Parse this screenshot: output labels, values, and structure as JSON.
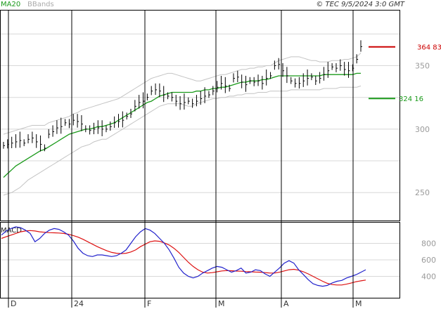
{
  "header": {
    "ma_label": "MA20",
    "bb_label": "BBands",
    "source": "© TEC 9/5/2024 3:0 GMT"
  },
  "markers": {
    "upper": {
      "value": 364.83,
      "label": "364 83",
      "color": "#cc0000"
    },
    "lower": {
      "value": 324.16,
      "label": "324 16",
      "color": "#1a9a1a"
    }
  },
  "macd_label": "MACD",
  "colors": {
    "price": "#000000",
    "ma": "#1a9a1a",
    "bands": "#c4c4c4",
    "macd": "#2222cc",
    "signal": "#dd1111",
    "grid": "#d8d8d8",
    "frame": "#000000"
  },
  "chart_data": [
    {
      "type": "line",
      "title": "",
      "x_tick_labels": [
        "D",
        "24",
        "F",
        "M",
        "A",
        "M"
      ],
      "y_tick_labels": [
        "350",
        "300",
        "250"
      ],
      "y_ticks": [
        350,
        300,
        250
      ],
      "ylim": [
        228,
        394
      ],
      "grid": true,
      "series": [
        {
          "name": "",
          "style": "ohlc-close",
          "values": [
            287,
            288,
            289,
            290,
            291,
            289,
            292,
            293,
            290,
            288,
            285,
            296,
            298,
            301,
            302,
            305,
            304,
            307,
            306,
            304,
            300,
            299,
            300,
            301,
            300,
            300,
            302,
            305,
            306,
            307,
            310,
            312,
            318,
            321,
            322,
            325,
            330,
            331,
            330,
            327,
            326,
            325,
            322,
            320,
            321,
            322,
            320,
            322,
            324,
            326,
            327,
            330,
            333,
            336,
            334,
            332,
            340,
            341,
            337,
            335,
            338,
            337,
            338,
            336,
            340,
            342,
            350,
            351,
            346,
            342,
            338,
            336,
            336,
            338,
            340,
            341,
            338,
            340,
            343,
            346,
            349,
            348,
            350,
            347,
            346,
            348,
            355,
            365
          ]
        },
        {
          "name": "MA20",
          "values": [
            262,
            265,
            268,
            271,
            273,
            275,
            277,
            279,
            281,
            283,
            284,
            286,
            288,
            290,
            292,
            294,
            296,
            297,
            298,
            299,
            300,
            300,
            301,
            302,
            302,
            303,
            304,
            305,
            307,
            309,
            311,
            313,
            315,
            317,
            319,
            321,
            322,
            324,
            326,
            327,
            328,
            329,
            329,
            329,
            329,
            329,
            329,
            330,
            330,
            331,
            331,
            332,
            332,
            333,
            333,
            334,
            335,
            336,
            337,
            337,
            338,
            338,
            338,
            339,
            339,
            340,
            341,
            342,
            342,
            342,
            342,
            342,
            342,
            342,
            342,
            342,
            342,
            342,
            343,
            343,
            343,
            343,
            343,
            343,
            343,
            343,
            344,
            344
          ]
        },
        {
          "name": "BBands",
          "values": [
            248,
            249,
            250,
            252,
            254,
            257,
            260,
            262,
            264,
            266,
            268,
            270,
            272,
            274,
            276,
            278,
            280,
            282,
            284,
            286,
            287,
            288,
            290,
            291,
            292,
            292,
            294,
            296,
            298,
            300,
            302,
            304,
            306,
            308,
            310,
            312,
            314,
            316,
            318,
            319,
            320,
            320,
            320,
            320,
            319,
            318,
            318,
            320,
            321,
            322,
            323,
            324,
            324,
            325,
            325,
            326,
            326,
            327,
            327,
            328,
            328,
            328,
            329,
            329,
            329,
            330,
            330,
            330,
            330,
            330,
            331,
            331,
            331,
            331,
            331,
            331,
            331,
            331,
            332,
            332,
            332,
            332,
            333,
            333,
            333,
            333,
            333,
            334
          ]
        },
        {
          "name": "BBands",
          "values": [
            296,
            297,
            298,
            299,
            300,
            301,
            302,
            303,
            303,
            303,
            303,
            305,
            306,
            307,
            308,
            309,
            310,
            312,
            313,
            315,
            316,
            317,
            318,
            319,
            320,
            321,
            322,
            323,
            324,
            326,
            328,
            330,
            332,
            334,
            336,
            338,
            340,
            341,
            342,
            343,
            344,
            344,
            343,
            342,
            341,
            340,
            339,
            338,
            338,
            339,
            340,
            341,
            342,
            343,
            343,
            344,
            345,
            346,
            347,
            347,
            348,
            348,
            349,
            349,
            350,
            350,
            352,
            354,
            355,
            356,
            357,
            357,
            357,
            356,
            355,
            354,
            354,
            353,
            353,
            353,
            354,
            354,
            354,
            355,
            355,
            356,
            357,
            360
          ]
        }
      ]
    },
    {
      "type": "line",
      "title": "MACD",
      "y_tick_labels": [
        "800",
        "600",
        "400"
      ],
      "y_ticks": [
        800,
        600,
        400
      ],
      "ylim": [
        140,
        1060
      ],
      "series": [
        {
          "name": "",
          "values": [
            900,
            950,
            980,
            1000,
            990,
            960,
            920,
            820,
            860,
            920,
            960,
            980,
            970,
            940,
            900,
            830,
            740,
            680,
            650,
            640,
            660,
            660,
            650,
            640,
            650,
            680,
            720,
            800,
            880,
            940,
            980,
            960,
            920,
            860,
            800,
            720,
            620,
            510,
            440,
            400,
            380,
            400,
            440,
            470,
            500,
            520,
            510,
            480,
            450,
            470,
            500,
            440,
            450,
            480,
            470,
            430,
            400,
            450,
            500,
            560,
            590,
            560,
            480,
            420,
            360,
            310,
            290,
            280,
            290,
            320,
            340,
            350,
            380,
            400,
            420,
            450,
            480
          ]
        },
        {
          "name": "",
          "values": [
            860,
            880,
            900,
            920,
            940,
            950,
            955,
            950,
            940,
            935,
            930,
            928,
            925,
            920,
            910,
            895,
            875,
            850,
            820,
            790,
            760,
            735,
            710,
            690,
            680,
            675,
            680,
            695,
            720,
            760,
            790,
            820,
            830,
            825,
            805,
            780,
            740,
            690,
            630,
            570,
            520,
            480,
            450,
            440,
            445,
            455,
            465,
            470,
            468,
            464,
            462,
            458,
            455,
            452,
            450,
            445,
            440,
            440,
            450,
            465,
            480,
            485,
            475,
            455,
            430,
            400,
            370,
            340,
            315,
            300,
            295,
            295,
            305,
            320,
            335,
            345,
            355
          ]
        }
      ]
    }
  ]
}
